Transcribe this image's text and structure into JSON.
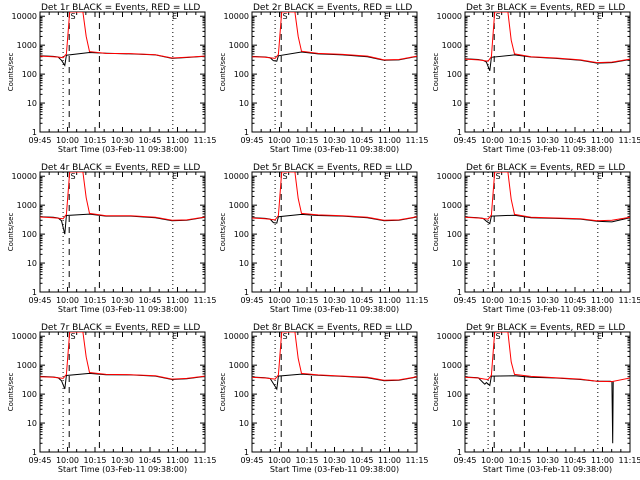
{
  "colors": {
    "background": "#ffffff",
    "events": "#000000",
    "lld": "#ff0000",
    "axes": "#000000"
  },
  "chart_data": {
    "type": "line",
    "scale_y": "log",
    "ylim": [
      1,
      14000
    ],
    "grid": false,
    "x_tick_labels": [
      "09:45",
      "10:00",
      "10:15",
      "10:30",
      "10:45",
      "11:00",
      "11:15"
    ],
    "y_tick_labels": [
      "1",
      "10",
      "100",
      "1000",
      "10000"
    ],
    "xlabel": "Start Time (03-Feb-11 09:38:00)",
    "ylabel": "Counts/sec",
    "marker_labels": {
      "left": "S",
      "right": "E"
    },
    "panels": [
      {
        "title": "Det 1r  BLACK = Events, RED = LLD",
        "lld": [
          [
            0,
            420
          ],
          [
            8,
            400
          ],
          [
            12,
            380
          ],
          [
            14,
            370
          ],
          [
            16,
            500
          ],
          [
            18,
            14000
          ],
          [
            26,
            14000
          ],
          [
            28,
            2000
          ],
          [
            30,
            600
          ],
          [
            40,
            520
          ],
          [
            55,
            510
          ],
          [
            70,
            470
          ],
          [
            80,
            360
          ],
          [
            89,
            380
          ],
          [
            100,
            420
          ]
        ],
        "events": [
          [
            0,
            430
          ],
          [
            8,
            410
          ],
          [
            11,
            390
          ],
          [
            13,
            300
          ],
          [
            15,
            200
          ],
          [
            16,
            450
          ],
          [
            30,
            560
          ],
          [
            40,
            530
          ],
          [
            55,
            500
          ],
          [
            70,
            460
          ],
          [
            80,
            350
          ],
          [
            89,
            375
          ],
          [
            100,
            415
          ]
        ]
      },
      {
        "title": "Det 2r  BLACK = Events, RED = LLD",
        "lld": [
          [
            0,
            400
          ],
          [
            8,
            380
          ],
          [
            12,
            360
          ],
          [
            14,
            350
          ],
          [
            16,
            480
          ],
          [
            18,
            14000
          ],
          [
            26,
            14000
          ],
          [
            28,
            2000
          ],
          [
            30,
            620
          ],
          [
            40,
            520
          ],
          [
            55,
            480
          ],
          [
            70,
            420
          ],
          [
            80,
            310
          ],
          [
            89,
            320
          ],
          [
            100,
            420
          ]
        ],
        "events": [
          [
            0,
            410
          ],
          [
            8,
            390
          ],
          [
            11,
            370
          ],
          [
            13,
            290
          ],
          [
            15,
            280
          ],
          [
            16,
            430
          ],
          [
            30,
            580
          ],
          [
            40,
            500
          ],
          [
            55,
            460
          ],
          [
            70,
            400
          ],
          [
            80,
            300
          ],
          [
            89,
            310
          ],
          [
            100,
            410
          ]
        ]
      },
      {
        "title": "Det 3r  BLACK = Events, RED = LLD",
        "lld": [
          [
            0,
            330
          ],
          [
            8,
            310
          ],
          [
            12,
            290
          ],
          [
            14,
            280
          ],
          [
            16,
            400
          ],
          [
            18,
            14000
          ],
          [
            26,
            14000
          ],
          [
            28,
            1500
          ],
          [
            30,
            500
          ],
          [
            40,
            400
          ],
          [
            55,
            360
          ],
          [
            70,
            310
          ],
          [
            80,
            250
          ],
          [
            89,
            260
          ],
          [
            100,
            330
          ]
        ],
        "events": [
          [
            0,
            340
          ],
          [
            8,
            320
          ],
          [
            11,
            300
          ],
          [
            13,
            260
          ],
          [
            15,
            130
          ],
          [
            16,
            380
          ],
          [
            30,
            460
          ],
          [
            40,
            390
          ],
          [
            55,
            350
          ],
          [
            70,
            300
          ],
          [
            80,
            240
          ],
          [
            89,
            250
          ],
          [
            100,
            320
          ]
        ]
      },
      {
        "title": "Det 4r  BLACK = Events, RED = LLD",
        "lld": [
          [
            0,
            390
          ],
          [
            8,
            370
          ],
          [
            12,
            350
          ],
          [
            14,
            340
          ],
          [
            16,
            480
          ],
          [
            18,
            14000
          ],
          [
            26,
            14000
          ],
          [
            28,
            1800
          ],
          [
            30,
            520
          ],
          [
            40,
            430
          ],
          [
            55,
            430
          ],
          [
            70,
            380
          ],
          [
            80,
            300
          ],
          [
            89,
            310
          ],
          [
            100,
            390
          ]
        ],
        "events": [
          [
            0,
            400
          ],
          [
            8,
            380
          ],
          [
            11,
            360
          ],
          [
            13,
            290
          ],
          [
            15,
            100
          ],
          [
            16,
            440
          ],
          [
            30,
            490
          ],
          [
            40,
            420
          ],
          [
            55,
            420
          ],
          [
            70,
            370
          ],
          [
            80,
            290
          ],
          [
            89,
            300
          ],
          [
            100,
            380
          ]
        ]
      },
      {
        "title": "Det 5r  BLACK = Events, RED = LLD",
        "lld": [
          [
            0,
            360
          ],
          [
            8,
            340
          ],
          [
            12,
            320
          ],
          [
            14,
            310
          ],
          [
            16,
            440
          ],
          [
            18,
            14000
          ],
          [
            26,
            14000
          ],
          [
            28,
            1700
          ],
          [
            30,
            520
          ],
          [
            40,
            460
          ],
          [
            55,
            430
          ],
          [
            70,
            380
          ],
          [
            80,
            300
          ],
          [
            89,
            310
          ],
          [
            100,
            400
          ]
        ],
        "events": [
          [
            0,
            370
          ],
          [
            8,
            350
          ],
          [
            11,
            330
          ],
          [
            13,
            250
          ],
          [
            15,
            240
          ],
          [
            16,
            400
          ],
          [
            30,
            480
          ],
          [
            40,
            440
          ],
          [
            55,
            420
          ],
          [
            70,
            370
          ],
          [
            80,
            290
          ],
          [
            89,
            300
          ],
          [
            100,
            390
          ]
        ]
      },
      {
        "title": "Det 6r  BLACK = Events, RED = LLD",
        "lld": [
          [
            0,
            380
          ],
          [
            8,
            360
          ],
          [
            12,
            340
          ],
          [
            14,
            330
          ],
          [
            16,
            460
          ],
          [
            18,
            14000
          ],
          [
            26,
            14000
          ],
          [
            28,
            1600
          ],
          [
            30,
            480
          ],
          [
            40,
            380
          ],
          [
            55,
            360
          ],
          [
            70,
            340
          ],
          [
            80,
            290
          ],
          [
            89,
            300
          ],
          [
            100,
            380
          ]
        ],
        "events": [
          [
            0,
            390
          ],
          [
            8,
            370
          ],
          [
            11,
            350
          ],
          [
            13,
            280
          ],
          [
            15,
            230
          ],
          [
            16,
            420
          ],
          [
            30,
            450
          ],
          [
            40,
            370
          ],
          [
            55,
            350
          ],
          [
            70,
            330
          ],
          [
            80,
            280
          ],
          [
            85,
            270
          ],
          [
            89,
            265
          ],
          [
            100,
            370
          ]
        ]
      },
      {
        "title": "Det 7r  BLACK = Events, RED = LLD",
        "lld": [
          [
            0,
            400
          ],
          [
            8,
            380
          ],
          [
            12,
            360
          ],
          [
            14,
            350
          ],
          [
            16,
            480
          ],
          [
            18,
            14000
          ],
          [
            26,
            14000
          ],
          [
            28,
            1900
          ],
          [
            30,
            560
          ],
          [
            40,
            480
          ],
          [
            55,
            470
          ],
          [
            70,
            430
          ],
          [
            80,
            330
          ],
          [
            89,
            350
          ],
          [
            100,
            420
          ]
        ],
        "events": [
          [
            0,
            410
          ],
          [
            8,
            390
          ],
          [
            11,
            370
          ],
          [
            13,
            290
          ],
          [
            15,
            150
          ],
          [
            16,
            440
          ],
          [
            30,
            520
          ],
          [
            40,
            470
          ],
          [
            55,
            460
          ],
          [
            70,
            420
          ],
          [
            80,
            320
          ],
          [
            89,
            340
          ],
          [
            100,
            410
          ]
        ]
      },
      {
        "title": "Det 8r  BLACK = Events, RED = LLD",
        "lld": [
          [
            0,
            380
          ],
          [
            8,
            360
          ],
          [
            12,
            340
          ],
          [
            14,
            330
          ],
          [
            16,
            460
          ],
          [
            18,
            14000
          ],
          [
            26,
            14000
          ],
          [
            28,
            1700
          ],
          [
            30,
            520
          ],
          [
            40,
            460
          ],
          [
            55,
            420
          ],
          [
            70,
            380
          ],
          [
            80,
            300
          ],
          [
            89,
            310
          ],
          [
            100,
            400
          ]
        ],
        "events": [
          [
            0,
            390
          ],
          [
            8,
            370
          ],
          [
            11,
            350
          ],
          [
            13,
            230
          ],
          [
            15,
            150
          ],
          [
            16,
            420
          ],
          [
            30,
            490
          ],
          [
            40,
            450
          ],
          [
            55,
            410
          ],
          [
            70,
            370
          ],
          [
            80,
            290
          ],
          [
            89,
            300
          ],
          [
            100,
            390
          ]
        ]
      },
      {
        "title": "Det 9r  BLACK = Events, RED = LLD",
        "lld": [
          [
            0,
            380
          ],
          [
            8,
            360
          ],
          [
            12,
            330
          ],
          [
            14,
            320
          ],
          [
            16,
            450
          ],
          [
            18,
            14000
          ],
          [
            26,
            14000
          ],
          [
            28,
            1300
          ],
          [
            30,
            480
          ],
          [
            40,
            410
          ],
          [
            55,
            370
          ],
          [
            70,
            330
          ],
          [
            80,
            280
          ],
          [
            89,
            270
          ],
          [
            100,
            360
          ]
        ],
        "events": [
          [
            0,
            390
          ],
          [
            8,
            370
          ],
          [
            11,
            250
          ],
          [
            12,
            220
          ],
          [
            13,
            250
          ],
          [
            15,
            200
          ],
          [
            16,
            420
          ],
          [
            30,
            430
          ],
          [
            40,
            380
          ],
          [
            55,
            360
          ],
          [
            70,
            320
          ],
          [
            80,
            280
          ],
          [
            88,
            280
          ],
          [
            89,
            270
          ],
          [
            89.5,
            2
          ],
          [
            89.8,
            270
          ]
        ]
      }
    ]
  }
}
